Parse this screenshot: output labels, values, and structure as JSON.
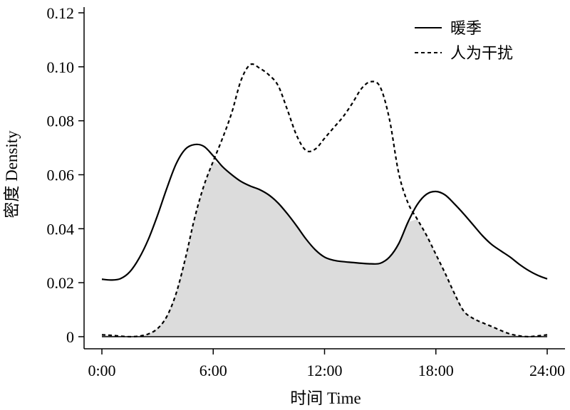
{
  "chart_data": {
    "type": "line",
    "title": "",
    "xlabel": "时间 Time",
    "ylabel": "密度 Density",
    "xlim": [
      0,
      24
    ],
    "ylim": [
      0,
      0.12
    ],
    "x_ticks": [
      0,
      6,
      12,
      18,
      24
    ],
    "x_tick_labels": [
      "0:00",
      "6:00",
      "12:00",
      "18:00",
      "24:00"
    ],
    "y_ticks": [
      0,
      0.02,
      0.04,
      0.06,
      0.08,
      0.1,
      0.12
    ],
    "y_tick_labels": [
      "0",
      "0.02",
      "0.04",
      "0.06",
      "0.08",
      "0.10",
      "0.12"
    ],
    "grid": false,
    "legend_position": "top-right",
    "overlap_fill_color": "#dcdcdc",
    "series": [
      {
        "name": "暖季",
        "style": "solid",
        "color": "#000000",
        "x": [
          0,
          0.5,
          1,
          1.5,
          2,
          2.5,
          3,
          3.5,
          4,
          4.5,
          5,
          5.5,
          6,
          6.5,
          7,
          7.5,
          8,
          8.5,
          9,
          9.5,
          10,
          10.5,
          11,
          11.5,
          12,
          12.5,
          13,
          13.5,
          14,
          14.5,
          15,
          15.5,
          16,
          16.5,
          17,
          17.5,
          18,
          18.5,
          19,
          19.5,
          20,
          20.5,
          21,
          21.5,
          22,
          22.5,
          23,
          23.5,
          24
        ],
        "y": [
          0.0213,
          0.021,
          0.0215,
          0.024,
          0.029,
          0.036,
          0.045,
          0.055,
          0.064,
          0.0695,
          0.0712,
          0.0705,
          0.067,
          0.063,
          0.06,
          0.0575,
          0.0558,
          0.0545,
          0.0525,
          0.0495,
          0.0455,
          0.041,
          0.0362,
          0.0322,
          0.0295,
          0.0283,
          0.0278,
          0.0275,
          0.0272,
          0.027,
          0.0272,
          0.0295,
          0.0345,
          0.0425,
          0.049,
          0.0528,
          0.0538,
          0.0525,
          0.0492,
          0.0455,
          0.0415,
          0.0375,
          0.0342,
          0.0318,
          0.0295,
          0.0268,
          0.0245,
          0.0227,
          0.0214
        ]
      },
      {
        "name": "人为干扰",
        "style": "dashed",
        "color": "#000000",
        "x": [
          0,
          0.5,
          1,
          1.5,
          2,
          2.5,
          3,
          3.5,
          4,
          4.5,
          5,
          5.5,
          6,
          6.5,
          7,
          7.5,
          8,
          8.5,
          9,
          9.5,
          10,
          10.5,
          11,
          11.5,
          12,
          12.5,
          13,
          13.5,
          14,
          14.5,
          15,
          15.5,
          16,
          16.5,
          17,
          17.5,
          18,
          18.5,
          19,
          19.5,
          20,
          20.5,
          21,
          21.5,
          22,
          22.5,
          23,
          23.5,
          24
        ],
        "y": [
          0.0007,
          0.0005,
          0.0002,
          0.0,
          0.0002,
          0.001,
          0.003,
          0.0075,
          0.016,
          0.029,
          0.044,
          0.056,
          0.065,
          0.0735,
          0.083,
          0.095,
          0.1008,
          0.0995,
          0.097,
          0.093,
          0.084,
          0.0745,
          0.069,
          0.0695,
          0.0735,
          0.0775,
          0.0815,
          0.0865,
          0.092,
          0.0945,
          0.0925,
          0.0805,
          0.0605,
          0.0495,
          0.0435,
          0.0375,
          0.0305,
          0.0235,
          0.016,
          0.0095,
          0.0068,
          0.0052,
          0.0038,
          0.0023,
          0.001,
          0.0003,
          0.0,
          0.0003,
          0.0007
        ]
      }
    ]
  }
}
